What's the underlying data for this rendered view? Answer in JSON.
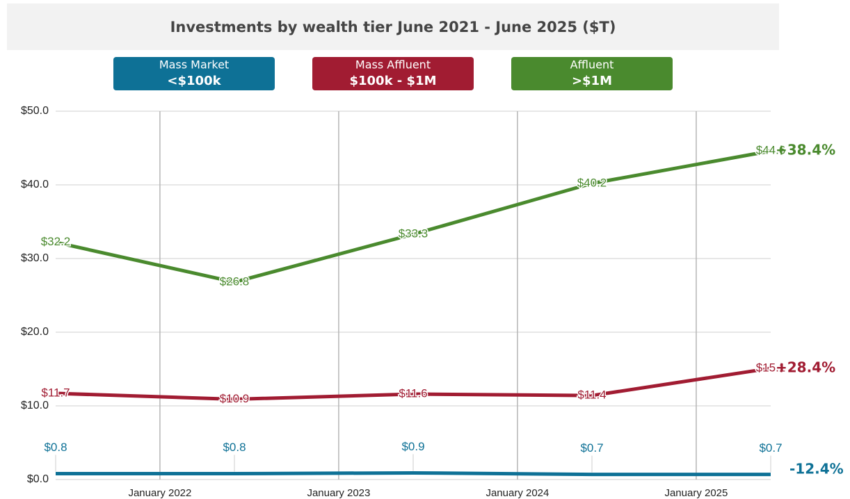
{
  "chart_data": {
    "type": "line",
    "title": "Investments by wealth tier  June 2021 - June 2025 ($T)",
    "x": [
      "2021-06",
      "2022-06",
      "2023-06",
      "2024-06",
      "2025-06"
    ],
    "xlim": [
      "2021-06",
      "2025-06"
    ],
    "xticks": [
      {
        "value": "2022-01",
        "label": "January 2022"
      },
      {
        "value": "2023-01",
        "label": "January 2023"
      },
      {
        "value": "2024-01",
        "label": "January 2024"
      },
      {
        "value": "2025-01",
        "label": "January 2025"
      }
    ],
    "ylim": [
      0,
      50
    ],
    "yticks": [
      {
        "value": 0,
        "label": "$0.0"
      },
      {
        "value": 10,
        "label": "$10.0"
      },
      {
        "value": 20,
        "label": "$20.0"
      },
      {
        "value": 30,
        "label": "$30.0"
      },
      {
        "value": 40,
        "label": "$40.0"
      },
      {
        "value": 50,
        "label": "$50.0"
      }
    ],
    "grid": true,
    "series": [
      {
        "name": "Mass Market",
        "tier": "<$100k",
        "color": "#0e7196",
        "values": [
          0.8,
          0.8,
          0.9,
          0.7,
          0.7
        ],
        "value_labels": [
          "$0.8",
          "$0.8",
          "$0.9",
          "$0.7",
          "$0.7"
        ],
        "change": "-12.4%"
      },
      {
        "name": "Mass Affluent",
        "tier": "$100k - $1M",
        "color": "#a11c32",
        "values": [
          11.7,
          10.9,
          11.6,
          11.4,
          15.1
        ],
        "value_labels": [
          "$11.7",
          "$10.9",
          "$11.6",
          "$11.4",
          "$15.1"
        ],
        "change": "+28.4%"
      },
      {
        "name": "Affluent",
        "tier": ">$1M",
        "color": "#4a8a2e",
        "values": [
          32.2,
          26.8,
          33.3,
          40.2,
          44.6
        ],
        "value_labels": [
          "$32.2",
          "$26.8",
          "$33.3",
          "$40.2",
          "$44.6"
        ],
        "change": "+38.4%"
      }
    ]
  }
}
